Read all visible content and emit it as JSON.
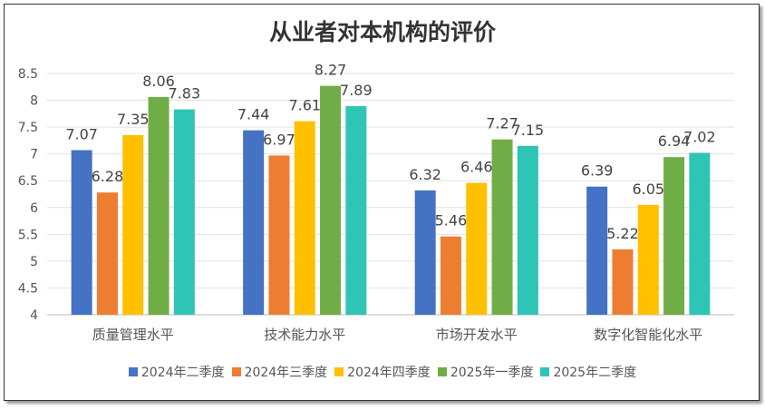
{
  "chart_data": {
    "type": "bar",
    "title": "从业者对本机构的评价",
    "categories": [
      "质量管理水平",
      "技术能力水平",
      "市场开发水平",
      "数字化智能化水平"
    ],
    "series": [
      {
        "name": "2024年二季度",
        "color": "#4472C4",
        "values": [
          7.07,
          7.44,
          6.32,
          6.39
        ]
      },
      {
        "name": "2024年三季度",
        "color": "#ED7D31",
        "values": [
          6.28,
          6.97,
          5.46,
          5.22
        ]
      },
      {
        "name": "2024年四季度",
        "color": "#FFC000",
        "values": [
          7.35,
          7.61,
          6.46,
          6.05
        ]
      },
      {
        "name": "2025年一季度",
        "color": "#70AD47",
        "values": [
          8.06,
          8.27,
          7.27,
          6.94
        ]
      },
      {
        "name": "2025年二季度",
        "color": "#2EC4B6",
        "values": [
          7.83,
          7.89,
          7.15,
          7.02
        ]
      }
    ],
    "yticks": [
      "4",
      "4.5",
      "5",
      "5.5",
      "6",
      "6.5",
      "7",
      "7.5",
      "8",
      "8.5"
    ],
    "ylim": [
      4,
      8.5
    ],
    "grid": true,
    "legend": "bottom",
    "xlabel": "",
    "ylabel": ""
  }
}
